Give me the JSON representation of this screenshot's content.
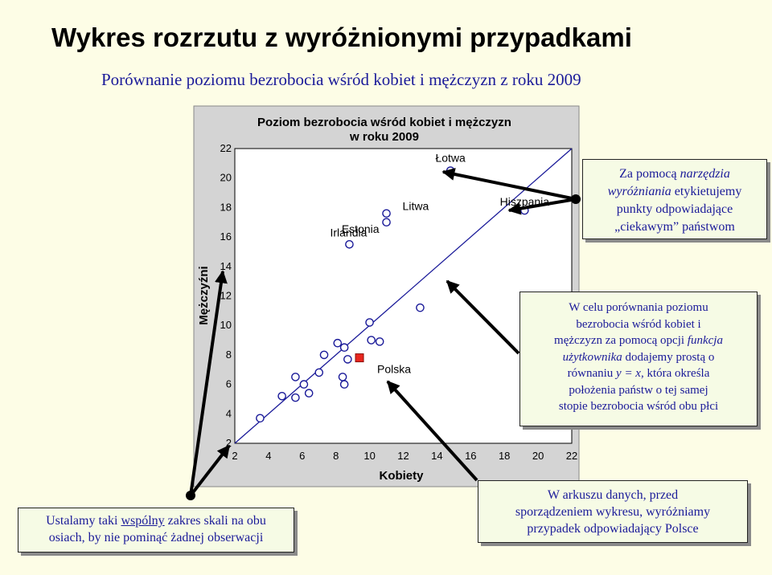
{
  "page": {
    "title": "Wykres rozrzutu z wyróżnionymi przypadkami",
    "subtitle": "Porównanie poziomu bezrobocia wśród kobiet i mężczyzn z roku 2009"
  },
  "chart_data": {
    "type": "scatter",
    "title_lines": [
      "Poziom bezrobocia wśród kobiet i mężczyzn",
      "w roku 2009"
    ],
    "xlabel": "Kobiety",
    "ylabel": "Mężczyźni",
    "xlim": [
      2,
      22
    ],
    "ylim": [
      2,
      22
    ],
    "x_ticks": [
      2,
      4,
      6,
      8,
      10,
      12,
      14,
      16,
      18,
      20,
      22
    ],
    "y_ticks": [
      2,
      4,
      6,
      8,
      10,
      12,
      14,
      16,
      18,
      20,
      22
    ],
    "grid": false,
    "reference_line": "y = x",
    "colors": {
      "marker": "#1a1a99",
      "highlight": "#e8261e",
      "background": "#ffffff",
      "line": "#1a1a99"
    },
    "points": [
      {
        "x": 3.5,
        "y": 3.7
      },
      {
        "x": 4.8,
        "y": 5.2
      },
      {
        "x": 5.6,
        "y": 5.1
      },
      {
        "x": 6.4,
        "y": 5.4
      },
      {
        "x": 5.6,
        "y": 6.5
      },
      {
        "x": 6.1,
        "y": 6.0
      },
      {
        "x": 7.0,
        "y": 6.8
      },
      {
        "x": 7.3,
        "y": 8.0
      },
      {
        "x": 8.1,
        "y": 8.8
      },
      {
        "x": 8.5,
        "y": 8.5
      },
      {
        "x": 8.7,
        "y": 7.7
      },
      {
        "x": 8.4,
        "y": 6.5
      },
      {
        "x": 8.5,
        "y": 6.0
      },
      {
        "x": 10.0,
        "y": 10.2
      },
      {
        "x": 10.1,
        "y": 9.0
      },
      {
        "x": 10.6,
        "y": 8.9
      },
      {
        "x": 13.0,
        "y": 11.2
      },
      {
        "x": 8.8,
        "y": 15.5
      },
      {
        "x": 11.0,
        "y": 17.0
      },
      {
        "x": 11.0,
        "y": 17.6
      },
      {
        "x": 14.8,
        "y": 20.5
      },
      {
        "x": 19.2,
        "y": 17.8
      }
    ],
    "labeled_points": [
      {
        "label": "Łotwa",
        "x": 14.8,
        "y": 20.5
      },
      {
        "label": "Hiszpania",
        "x": 19.2,
        "y": 17.8
      },
      {
        "label": "Litwa",
        "x": 11.0,
        "y": 17.6
      },
      {
        "label": "Estonia",
        "x": 11.0,
        "y": 17.0
      },
      {
        "label": "Irlandia",
        "x": 8.8,
        "y": 15.5
      },
      {
        "label": "Polska",
        "x": 9.4,
        "y": 7.8,
        "highlighted": true
      }
    ]
  },
  "callouts": {
    "tool": {
      "line1_pre": "Za pomocą ",
      "line1_em": "narzędzia",
      "line2_em": "wyróżniania",
      "line2_post": " etykietujemy",
      "line3": "punkty odpowiadające",
      "line4": "„ciekawym” państwom"
    },
    "diagonal": {
      "line1": "W celu porównania poziomu",
      "line2": "bezrobocia wśród kobiet i",
      "line3_pre": "mężczyzn za pomocą opcji ",
      "line3_em": "funkcja",
      "line4_em": "użytkownika",
      "line4_post": " dodajemy prostą o",
      "line5_pre": "równaniu ",
      "line5_em": "y = x",
      "line5_post": ", która określa",
      "line6": "położenia państw o tej samej",
      "line7": "stopie bezrobocia wśród obu płci"
    },
    "data": {
      "line1": "W arkuszu danych, przed",
      "line2": "sporządzeniem wykresu, wyróżniamy",
      "line3": "przypadek odpowiadający Polsce"
    },
    "scale": {
      "line1_pre": "Ustalamy taki ",
      "line1_u": "wspólny",
      "line1_post": " zakres skali na obu",
      "line2": "osiach, by nie pominąć żadnej obserwacji"
    }
  }
}
